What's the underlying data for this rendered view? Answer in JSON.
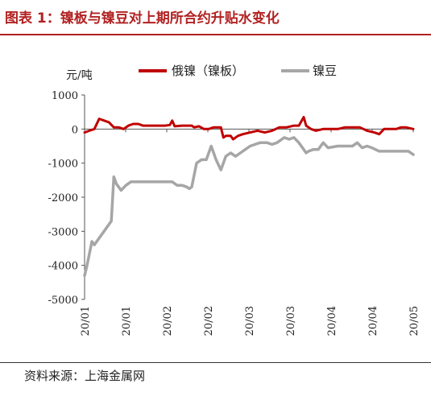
{
  "header": {
    "title": "图表 1：镍板与镍豆对上期所合约升贴水变化"
  },
  "footer": {
    "source": "资料来源：上海金属网"
  },
  "chart_data": {
    "type": "line",
    "title": "图表 1：镍板与镍豆对上期所合约升贴水变化",
    "ylabel": "元/吨",
    "xlabel": "",
    "ylim": [
      -5000,
      1000
    ],
    "yticks": [
      1000,
      0,
      -1000,
      -2000,
      -3000,
      -4000,
      -5000
    ],
    "xlim": [
      "2020-01-01",
      "2020-05-15"
    ],
    "xticks": [
      "20/01",
      "20/01",
      "20/02",
      "20/02",
      "20/03",
      "20/03",
      "20/04",
      "20/04",
      "20/05"
    ],
    "legend_position": "top",
    "grid": false,
    "series": [
      {
        "name": "俄镍（镍板）",
        "color": "#c00000",
        "points": [
          [
            "2020-01-01",
            -100
          ],
          [
            "2020-01-03",
            -50
          ],
          [
            "2020-01-05",
            0
          ],
          [
            "2020-01-07",
            300
          ],
          [
            "2020-01-09",
            250
          ],
          [
            "2020-01-11",
            200
          ],
          [
            "2020-01-13",
            50
          ],
          [
            "2020-01-15",
            50
          ],
          [
            "2020-01-17",
            0
          ],
          [
            "2020-01-19",
            100
          ],
          [
            "2020-01-21",
            150
          ],
          [
            "2020-01-23",
            150
          ],
          [
            "2020-01-25",
            100
          ],
          [
            "2020-01-30",
            100
          ],
          [
            "2020-02-03",
            100
          ],
          [
            "2020-02-05",
            120
          ],
          [
            "2020-02-06",
            250
          ],
          [
            "2020-02-07",
            80
          ],
          [
            "2020-02-10",
            100
          ],
          [
            "2020-02-14",
            100
          ],
          [
            "2020-02-15",
            50
          ],
          [
            "2020-02-17",
            80
          ],
          [
            "2020-02-19",
            0
          ],
          [
            "2020-02-21",
            0
          ],
          [
            "2020-02-23",
            50
          ],
          [
            "2020-02-26",
            50
          ],
          [
            "2020-02-27",
            -250
          ],
          [
            "2020-02-28",
            -200
          ],
          [
            "2020-03-01",
            -200
          ],
          [
            "2020-03-02",
            -300
          ],
          [
            "2020-03-04",
            -200
          ],
          [
            "2020-03-06",
            -150
          ],
          [
            "2020-03-09",
            -100
          ],
          [
            "2020-03-12",
            -50
          ],
          [
            "2020-03-15",
            -100
          ],
          [
            "2020-03-18",
            -50
          ],
          [
            "2020-03-21",
            50
          ],
          [
            "2020-03-24",
            50
          ],
          [
            "2020-03-27",
            100
          ],
          [
            "2020-03-29",
            100
          ],
          [
            "2020-03-31",
            350
          ],
          [
            "2020-04-01",
            100
          ],
          [
            "2020-04-03",
            0
          ],
          [
            "2020-04-05",
            -50
          ],
          [
            "2020-04-08",
            0
          ],
          [
            "2020-04-11",
            0
          ],
          [
            "2020-04-14",
            0
          ],
          [
            "2020-04-17",
            50
          ],
          [
            "2020-04-20",
            50
          ],
          [
            "2020-04-23",
            50
          ],
          [
            "2020-04-26",
            -50
          ],
          [
            "2020-04-29",
            -100
          ],
          [
            "2020-05-01",
            -150
          ],
          [
            "2020-05-03",
            0
          ],
          [
            "2020-05-06",
            0
          ],
          [
            "2020-05-08",
            0
          ],
          [
            "2020-05-10",
            50
          ],
          [
            "2020-05-12",
            50
          ],
          [
            "2020-05-15",
            0
          ]
        ]
      },
      {
        "name": "镍豆",
        "color": "#a6a6a6",
        "points": [
          [
            "2020-01-01",
            -4300
          ],
          [
            "2020-01-02",
            -4000
          ],
          [
            "2020-01-04",
            -3300
          ],
          [
            "2020-01-05",
            -3400
          ],
          [
            "2020-01-06",
            -3300
          ],
          [
            "2020-01-07",
            -3200
          ],
          [
            "2020-01-09",
            -3000
          ],
          [
            "2020-01-12",
            -2700
          ],
          [
            "2020-01-13",
            -1400
          ],
          [
            "2020-01-14",
            -1600
          ],
          [
            "2020-01-15",
            -1700
          ],
          [
            "2020-01-16",
            -1800
          ],
          [
            "2020-01-18",
            -1650
          ],
          [
            "2020-01-20",
            -1550
          ],
          [
            "2020-01-25",
            -1550
          ],
          [
            "2020-01-30",
            -1550
          ],
          [
            "2020-02-03",
            -1550
          ],
          [
            "2020-02-06",
            -1550
          ],
          [
            "2020-02-08",
            -1650
          ],
          [
            "2020-02-10",
            -1650
          ],
          [
            "2020-02-12",
            -1700
          ],
          [
            "2020-02-13",
            -1750
          ],
          [
            "2020-02-14",
            -1700
          ],
          [
            "2020-02-16",
            -1000
          ],
          [
            "2020-02-18",
            -900
          ],
          [
            "2020-02-20",
            -900
          ],
          [
            "2020-02-22",
            -500
          ],
          [
            "2020-02-24",
            -900
          ],
          [
            "2020-02-26",
            -1200
          ],
          [
            "2020-02-28",
            -800
          ],
          [
            "2020-03-01",
            -700
          ],
          [
            "2020-03-03",
            -800
          ],
          [
            "2020-03-05",
            -700
          ],
          [
            "2020-03-07",
            -600
          ],
          [
            "2020-03-09",
            -500
          ],
          [
            "2020-03-11",
            -450
          ],
          [
            "2020-03-13",
            -400
          ],
          [
            "2020-03-16",
            -400
          ],
          [
            "2020-03-18",
            -450
          ],
          [
            "2020-03-20",
            -400
          ],
          [
            "2020-03-23",
            -250
          ],
          [
            "2020-03-25",
            -300
          ],
          [
            "2020-03-27",
            -250
          ],
          [
            "2020-03-29",
            -400
          ],
          [
            "2020-03-31",
            -600
          ],
          [
            "2020-04-01",
            -700
          ],
          [
            "2020-04-02",
            -650
          ],
          [
            "2020-04-04",
            -600
          ],
          [
            "2020-04-06",
            -600
          ],
          [
            "2020-04-08",
            -400
          ],
          [
            "2020-04-10",
            -550
          ],
          [
            "2020-04-14",
            -500
          ],
          [
            "2020-04-17",
            -500
          ],
          [
            "2020-04-20",
            -500
          ],
          [
            "2020-04-22",
            -400
          ],
          [
            "2020-04-24",
            -550
          ],
          [
            "2020-04-26",
            -500
          ],
          [
            "2020-04-28",
            -550
          ],
          [
            "2020-05-01",
            -650
          ],
          [
            "2020-05-05",
            -650
          ],
          [
            "2020-05-10",
            -650
          ],
          [
            "2020-05-13",
            -650
          ],
          [
            "2020-05-15",
            -750
          ]
        ]
      }
    ]
  }
}
